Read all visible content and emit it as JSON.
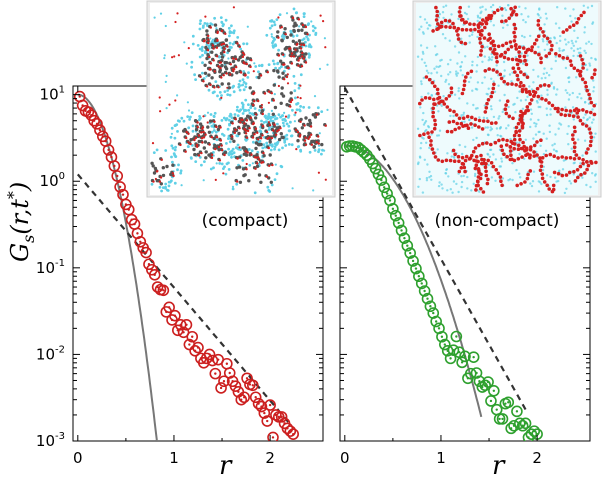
{
  "figure": {
    "y_axis_label": {
      "main": "G",
      "sub": "s",
      "args": "(r,t",
      "star": "*",
      "close": ")"
    },
    "x_axis_label": "r"
  },
  "colors": {
    "compact_series": "#cc1f1f",
    "noncompact_series": "#2ea02e",
    "gaussian_line": "#777777",
    "exponential_line": "#333333",
    "particle_red": "#d42020",
    "particle_cyan": "#5fd0e6",
    "particle_grey": "#555555"
  },
  "chart_data": [
    {
      "type": "scatter",
      "panel": "left",
      "annotation": "(compact)",
      "inset_icon": "compact-snapshot",
      "xlim": [
        -0.05,
        2.55
      ],
      "ylim_log10": [
        -3,
        1.1
      ],
      "y_scale": "log",
      "x_ticks": [
        0,
        1,
        2
      ],
      "x_tick_labels": [
        "0",
        "1",
        "2"
      ],
      "y_ticks": [
        {
          "mant": "10",
          "exp": "1"
        },
        {
          "mant": "10",
          "exp": "0"
        },
        {
          "mant": "10",
          "exp": "-1"
        },
        {
          "mant": "10",
          "exp": "-2"
        },
        {
          "mant": "10",
          "exp": "-3"
        }
      ],
      "series": [
        {
          "kind": "circles",
          "x": [
            0.02,
            0.05,
            0.08,
            0.11,
            0.14,
            0.17,
            0.2,
            0.23,
            0.26,
            0.29,
            0.32,
            0.35,
            0.38,
            0.41,
            0.44,
            0.47,
            0.5,
            0.53,
            0.56,
            0.59,
            0.62,
            0.65,
            0.68,
            0.71,
            0.74,
            0.77,
            0.8,
            0.83,
            0.86,
            0.89,
            0.92,
            0.95,
            0.98,
            1.01,
            1.04,
            1.07,
            1.1,
            1.13,
            1.16,
            1.19,
            1.22,
            1.25,
            1.28,
            1.31,
            1.34,
            1.37,
            1.4,
            1.43,
            1.46,
            1.49,
            1.52,
            1.55,
            1.58,
            1.61,
            1.64,
            1.67,
            1.7,
            1.73,
            1.76,
            1.79,
            1.82,
            1.85,
            1.88,
            1.91,
            1.94,
            1.97,
            2.0,
            2.03,
            2.06,
            2.09,
            2.12,
            2.15,
            2.18,
            2.21,
            2.24
          ],
          "y": [
            9.5,
            7.5,
            6.5,
            6.3,
            5.8,
            5.0,
            4.6,
            3.9,
            3.3,
            2.9,
            2.3,
            1.9,
            1.5,
            1.15,
            0.86,
            0.7,
            0.54,
            0.47,
            0.36,
            0.32,
            0.25,
            0.2,
            0.17,
            0.15,
            0.11,
            0.095,
            0.083,
            0.06,
            0.056,
            0.055,
            0.031,
            0.035,
            0.025,
            0.028,
            0.019,
            0.022,
            0.018,
            0.022,
            0.013,
            0.016,
            0.011,
            0.012,
            0.009,
            0.008,
            0.009,
            0.01,
            0.0085,
            0.006,
            0.0087,
            0.0041,
            0.0049,
            0.0078,
            0.0061,
            0.0049,
            0.0043,
            0.0037,
            0.003,
            0.0032,
            0.0053,
            0.0045,
            0.0044,
            0.0032,
            0.0027,
            0.0025,
            0.0021,
            0.0017,
            0.0026,
            0.0011,
            0.002,
            0.0019,
            0.0019,
            0.0016,
            0.0014,
            0.0013,
            0.0012
          ]
        },
        {
          "kind": "gaussian",
          "amplitude": 10,
          "sigma": 0.1916,
          "x_range": [
            0,
            0.88
          ]
        },
        {
          "kind": "exponential",
          "amplitude": 1.2,
          "decay": 0.3325,
          "x_range": [
            0,
            2.2
          ]
        }
      ]
    },
    {
      "type": "scatter",
      "panel": "right",
      "annotation": "(non-compact)",
      "inset_icon": "noncompact-snapshot",
      "xlim": [
        -0.05,
        2.55
      ],
      "ylim_log10": [
        -3,
        1.1
      ],
      "y_scale": "log",
      "x_ticks": [
        0,
        1,
        2
      ],
      "x_tick_labels": [
        "0",
        "1",
        "2"
      ],
      "series": [
        {
          "kind": "circles",
          "x": [
            0.02,
            0.05,
            0.08,
            0.11,
            0.14,
            0.17,
            0.2,
            0.23,
            0.26,
            0.29,
            0.32,
            0.35,
            0.38,
            0.41,
            0.44,
            0.47,
            0.5,
            0.53,
            0.56,
            0.59,
            0.62,
            0.65,
            0.68,
            0.71,
            0.74,
            0.77,
            0.8,
            0.83,
            0.86,
            0.89,
            0.92,
            0.95,
            0.98,
            1.01,
            1.04,
            1.07,
            1.1,
            1.13,
            1.16,
            1.19,
            1.22,
            1.25,
            1.28,
            1.31,
            1.34,
            1.37,
            1.4,
            1.43,
            1.46,
            1.49,
            1.52,
            1.55,
            1.58,
            1.61,
            1.64,
            1.67,
            1.7,
            1.73,
            1.76,
            1.79,
            1.82,
            1.85,
            1.88,
            1.91,
            1.94,
            1.97,
            2.0
          ],
          "y": [
            2.5,
            2.55,
            2.55,
            2.5,
            2.45,
            2.3,
            2.15,
            2.0,
            1.8,
            1.6,
            1.4,
            1.2,
            1.03,
            0.85,
            0.72,
            0.6,
            0.48,
            0.4,
            0.33,
            0.27,
            0.22,
            0.18,
            0.148,
            0.12,
            0.098,
            0.08,
            0.066,
            0.054,
            0.044,
            0.036,
            0.03,
            0.024,
            0.02,
            0.016,
            0.013,
            0.011,
            0.009,
            0.0112,
            0.0161,
            0.0106,
            0.0081,
            0.0095,
            0.0053,
            0.006,
            0.0093,
            0.0061,
            0.0049,
            0.0042,
            0.0044,
            0.0048,
            0.0029,
            0.0038,
            0.0023,
            0.0018,
            0.0018,
            0.0027,
            0.0028,
            0.0014,
            0.0015,
            0.0022,
            0.0016,
            0.0015,
            0.0016,
            0.0011,
            0.0012,
            0.0013,
            0.0012
          ]
        },
        {
          "kind": "gaussian",
          "amplitude": 2.6,
          "sigma": 0.3736,
          "x_range": [
            0,
            1.42
          ]
        },
        {
          "kind": "exponential",
          "amplitude": 12,
          "decay": 0.2197,
          "x_range": [
            0,
            1.9
          ]
        }
      ]
    }
  ]
}
